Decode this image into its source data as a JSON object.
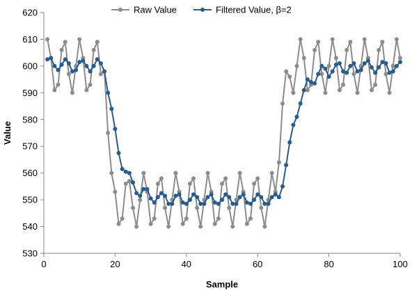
{
  "chart_data": {
    "type": "line",
    "xlabel": "Sample",
    "ylabel": "Value",
    "xlim": [
      0,
      100
    ],
    "ylim": [
      530,
      620
    ],
    "xticks": [
      0,
      20,
      40,
      60,
      80,
      100
    ],
    "yticks": [
      530,
      540,
      550,
      560,
      570,
      580,
      590,
      600,
      610,
      620
    ],
    "grid": false,
    "legend_position": "top",
    "series": [
      {
        "name": "Raw Value",
        "color": "#8c8c8c",
        "marker": "circle",
        "x": [
          1,
          2,
          3,
          4,
          5,
          6,
          7,
          8,
          9,
          10,
          11,
          12,
          13,
          14,
          15,
          16,
          17,
          18,
          19,
          20,
          21,
          22,
          23,
          24,
          25,
          26,
          27,
          28,
          29,
          30,
          31,
          32,
          33,
          34,
          35,
          36,
          37,
          38,
          39,
          40,
          41,
          42,
          43,
          44,
          45,
          46,
          47,
          48,
          49,
          50,
          51,
          52,
          53,
          54,
          55,
          56,
          57,
          58,
          59,
          60,
          61,
          62,
          63,
          64,
          65,
          66,
          67,
          68,
          69,
          70,
          71,
          72,
          73,
          74,
          75,
          76,
          77,
          78,
          79,
          80,
          81,
          82,
          83,
          84,
          85,
          86,
          87,
          88,
          89,
          90,
          91,
          92,
          93,
          94,
          95,
          96,
          97,
          98,
          99,
          100
        ],
        "values": [
          610,
          603,
          591,
          593,
          606,
          609,
          597,
          590,
          600,
          610,
          603,
          591,
          593,
          606,
          609,
          597,
          598,
          575,
          560,
          553,
          541,
          543,
          556,
          557,
          547,
          540,
          550,
          560,
          553,
          541,
          543,
          556,
          558,
          547,
          540,
          550,
          560,
          553,
          541,
          543,
          556,
          558,
          547,
          540,
          550,
          560,
          553,
          541,
          543,
          556,
          558,
          547,
          540,
          550,
          560,
          553,
          541,
          543,
          556,
          558,
          547,
          540,
          550,
          560,
          553,
          564,
          586,
          598,
          596,
          590,
          600,
          610,
          603,
          591,
          593,
          606,
          609,
          597,
          590,
          600,
          610,
          603,
          591,
          593,
          606,
          609,
          597,
          590,
          600,
          610,
          603,
          591,
          593,
          606,
          609,
          597,
          590,
          600,
          610,
          603
        ]
      },
      {
        "name": "Filtered Value, β=2",
        "color": "#2a5b8e",
        "marker": "circle",
        "x": [
          1,
          2,
          3,
          4,
          5,
          6,
          7,
          8,
          9,
          10,
          11,
          12,
          13,
          14,
          15,
          16,
          17,
          18,
          19,
          20,
          21,
          22,
          23,
          24,
          25,
          26,
          27,
          28,
          29,
          30,
          31,
          32,
          33,
          34,
          35,
          36,
          37,
          38,
          39,
          40,
          41,
          42,
          43,
          44,
          45,
          46,
          47,
          48,
          49,
          50,
          51,
          52,
          53,
          54,
          55,
          56,
          57,
          58,
          59,
          60,
          61,
          62,
          63,
          64,
          65,
          66,
          67,
          68,
          69,
          70,
          71,
          72,
          73,
          74,
          75,
          76,
          77,
          78,
          79,
          80,
          81,
          82,
          83,
          84,
          85,
          86,
          87,
          88,
          89,
          90,
          91,
          92,
          93,
          94,
          95,
          96,
          97,
          98,
          99,
          100
        ],
        "values": [
          602.5,
          603,
          600,
          598.5,
          600.5,
          602.5,
          601,
          598,
          598.5,
          601.5,
          602,
          600,
          598,
          600,
          602.5,
          601,
          598,
          590,
          584,
          576.5,
          567.5,
          561.5,
          560.5,
          560,
          556.5,
          552.5,
          551.5,
          554,
          554,
          550.5,
          549,
          551,
          552.5,
          551.5,
          548.5,
          548.5,
          551.5,
          552,
          549,
          548.5,
          550,
          552,
          551,
          548.5,
          548.5,
          551,
          552,
          549,
          548.5,
          550,
          552,
          551,
          548.5,
          548.5,
          551,
          552,
          549,
          548.5,
          550,
          552,
          551,
          548.5,
          548.5,
          551,
          552,
          551,
          555,
          563,
          571.5,
          578,
          581,
          586,
          591,
          595,
          594,
          593.5,
          597,
          600,
          599,
          596,
          598,
          600.5,
          601,
          598,
          597.5,
          600,
          601,
          598,
          598.5,
          601,
          602,
          599.5,
          597.5,
          599.5,
          601.5,
          601,
          597.5,
          598,
          600,
          601.5
        ]
      }
    ]
  }
}
